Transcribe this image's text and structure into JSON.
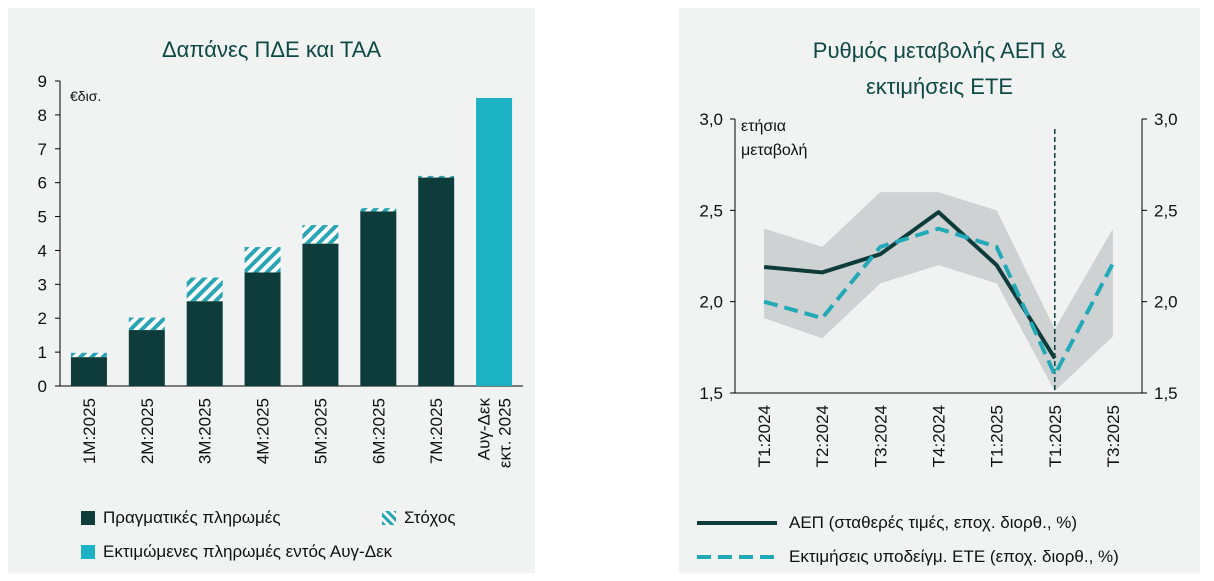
{
  "left_panel": {
    "chart_data": {
      "type": "bar",
      "title": "Δαπάνες ΠΔΕ και ΤΑΑ",
      "unit_label": "€δισ.",
      "ylim": [
        0,
        9
      ],
      "yticks": [
        "0",
        "1",
        "2",
        "3",
        "4",
        "5",
        "6",
        "7",
        "8",
        "9"
      ],
      "categories": [
        "1M:2025",
        "2M:2025",
        "3M:2025",
        "4M:2025",
        "5M:2025",
        "6M:2025",
        "7M:2025",
        "Αυγ-Δεκ εκτ. 2025"
      ],
      "category_lines": [
        [
          "1M:2025"
        ],
        [
          "2M:2025"
        ],
        [
          "3M:2025"
        ],
        [
          "4M:2025"
        ],
        [
          "5M:2025"
        ],
        [
          "6M:2025"
        ],
        [
          "7M:2025"
        ],
        [
          "Αυγ-Δεκ",
          "εκτ. 2025"
        ]
      ],
      "series": [
        {
          "name": "Πραγματικές πληρωμές",
          "values": [
            0.85,
            1.65,
            2.5,
            3.35,
            4.2,
            5.15,
            6.15,
            null
          ],
          "color": "#0d3c3a"
        },
        {
          "name": "Στόχος",
          "values": [
            0.98,
            2.02,
            3.2,
            4.1,
            4.75,
            5.25,
            6.2,
            null
          ],
          "color": "#2aa5b5"
        },
        {
          "name": "Εκτιμώμενες πληρωμές εντός Αυγ-Δεκ",
          "values": [
            null,
            null,
            null,
            null,
            null,
            null,
            null,
            8.5
          ],
          "color": "#1bb3c4"
        }
      ]
    },
    "legend": [
      {
        "label": "Πραγματικές πληρωμές"
      },
      {
        "label": "Στόχος"
      },
      {
        "label": "Εκτιμώμενες πληρωμές εντός Αυγ-Δεκ"
      }
    ]
  },
  "right_panel": {
    "chart_data": {
      "type": "line",
      "title_lines": [
        "Ρυθμός μεταβολής ΑΕΠ &",
        "εκτιμήσεις ΕΤΕ"
      ],
      "axis_note_lines": [
        "ετήσια",
        "μεταβολή"
      ],
      "ylim": [
        1.5,
        3.0
      ],
      "yticks": [
        "1,5",
        "2,0",
        "2,5",
        "3,0"
      ],
      "categories": [
        "T1:2024",
        "T2:2024",
        "T3:2024",
        "T4:2024",
        "T1:2025",
        "T1:2025",
        "T3:2025"
      ],
      "series": [
        {
          "name": "ΑΕΠ (σταθερές τιμές, εποχ. διορθ., %)",
          "values": [
            2.19,
            2.16,
            2.26,
            2.49,
            2.2,
            1.69,
            null
          ],
          "color": "#0d3c3a",
          "style": "solid"
        },
        {
          "name": "Εκτιμήσεις υποδείγμ. ΕΤΕ (εποχ. διορθ., %)",
          "values": [
            2.0,
            1.91,
            2.3,
            2.4,
            2.3,
            1.6,
            2.21
          ],
          "color": "#22a9b8",
          "style": "dashed"
        }
      ],
      "band": {
        "lower": [
          1.91,
          1.8,
          2.1,
          2.2,
          2.1,
          1.51,
          1.81
        ],
        "upper": [
          2.4,
          2.3,
          2.6,
          2.6,
          2.5,
          1.85,
          2.4
        ],
        "color": "#cfd2d3"
      },
      "vline_category_index": 5
    },
    "legend": [
      {
        "label": "ΑΕΠ (σταθερές τιμές, εποχ. διορθ., %)"
      },
      {
        "label": "Εκτιμήσεις υποδείγμ. ΕΤΕ (εποχ. διορθ., %)"
      }
    ]
  }
}
